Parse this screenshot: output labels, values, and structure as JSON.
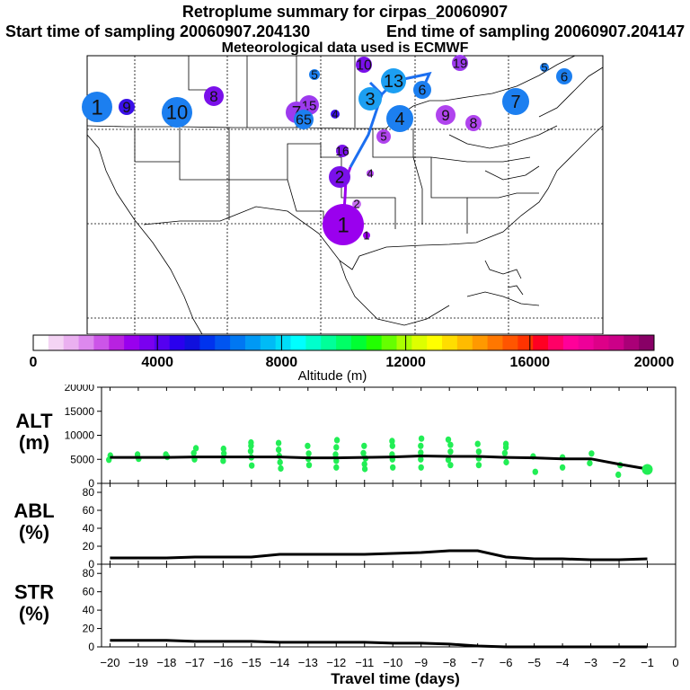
{
  "title": "Retroplume summary for cirpas_20060907",
  "start_label": "Start time of sampling 20060907.204130",
  "end_label": "End time of sampling 20060907.204147",
  "met_label": "Meteorological data used is ECMWF",
  "colorbar": {
    "label": "Altitude (m)",
    "ticks": [
      "0",
      "4000",
      "8000",
      "12000",
      "16000",
      "20000"
    ],
    "colors": [
      "#ffffff",
      "#f4d4f4",
      "#eab0f0",
      "#dd88ee",
      "#cc55e8",
      "#b822e0",
      "#9900ee",
      "#7a00f0",
      "#5500f0",
      "#2a00ee",
      "#1010dd",
      "#0033ee",
      "#0055f0",
      "#0077f2",
      "#0099f4",
      "#00bbf6",
      "#00ddf8",
      "#00ffff",
      "#00ffcc",
      "#00ff99",
      "#00ff66",
      "#00ff33",
      "#22ff00",
      "#66ff00",
      "#aaff00",
      "#ddff00",
      "#ffff00",
      "#ffdd00",
      "#ffbb00",
      "#ff9900",
      "#ff7700",
      "#ff5500",
      "#ff3300",
      "#ff0022",
      "#ff0066",
      "#ff0099",
      "#ee0099",
      "#dd0088",
      "#cc0088",
      "#aa0077",
      "#880066"
    ]
  },
  "map_labels": [
    {
      "text": "1",
      "color": "#1c7ff0"
    },
    {
      "text": "9",
      "color": "#3a10e8"
    },
    {
      "text": "10",
      "color": "#1c7ff0"
    },
    {
      "text": "8",
      "color": "#7a10ea"
    },
    {
      "text": "5",
      "color": "#1c7ff0"
    },
    {
      "text": "15",
      "color": "#9d3aee"
    },
    {
      "text": "7",
      "color": "#9d3aee"
    },
    {
      "text": "65",
      "color": "#1c7ff0"
    },
    {
      "text": "4",
      "color": "#3a10e8"
    },
    {
      "text": "16",
      "color": "#7a10ea"
    },
    {
      "text": "3",
      "color": "#1c9ff2"
    },
    {
      "text": "4",
      "color": "#1c7ff0"
    },
    {
      "text": "5",
      "color": "#b044ee"
    },
    {
      "text": "2",
      "color": "#7a10ea"
    },
    {
      "text": "4",
      "color": "#b044ee"
    },
    {
      "text": "2",
      "color": "#c66ef0"
    },
    {
      "text": "1",
      "color": "#9a00ee"
    },
    {
      "text": "1",
      "color": "#9a00ee"
    },
    {
      "text": "9",
      "color": "#b044ee"
    },
    {
      "text": "8",
      "color": "#b044ee"
    },
    {
      "text": "7",
      "color": "#1c7ff0"
    },
    {
      "text": "5",
      "color": "#1c7ff0"
    },
    {
      "text": "6",
      "color": "#1c7ff0"
    },
    {
      "text": "19",
      "color": "#9d3aee"
    },
    {
      "text": "10",
      "color": "#7a10ea"
    },
    {
      "text": "13",
      "color": "#1c9ff2"
    },
    {
      "text": "6",
      "color": "#1c7ff0"
    }
  ],
  "chart_data": [
    {
      "type": "scatter",
      "title": "",
      "ylabel": "ALT (m)",
      "ylabel_line1": "ALT",
      "ylabel_line2": "(m)",
      "ylim": [
        0,
        20000
      ],
      "yticks": [
        "0",
        "5000",
        "10000",
        "15000",
        "20000"
      ],
      "x": [
        -20,
        -19,
        -18,
        -17,
        -16,
        -15,
        -14,
        -13,
        -12,
        -11,
        -10,
        -9,
        -8,
        -7,
        -6,
        -5,
        -4,
        -3,
        -2,
        -1
      ],
      "mean_altitude": [
        5400,
        5400,
        5400,
        5500,
        5500,
        5500,
        5500,
        5300,
        5300,
        5400,
        5500,
        5700,
        5600,
        5600,
        5400,
        5300,
        5100,
        5100,
        4000,
        3000
      ],
      "scatter_points": [
        [
          -20,
          5800
        ],
        [
          -20,
          4900
        ],
        [
          -19,
          6000
        ],
        [
          -19,
          5100
        ],
        [
          -18,
          5500
        ],
        [
          -18,
          6000
        ],
        [
          -17,
          6300
        ],
        [
          -17,
          5000
        ],
        [
          -17,
          7300
        ],
        [
          -16,
          6200
        ],
        [
          -16,
          4700
        ],
        [
          -16,
          7200
        ],
        [
          -15,
          6700
        ],
        [
          -15,
          5400
        ],
        [
          -15,
          3700
        ],
        [
          -15,
          7800
        ],
        [
          -15,
          8500
        ],
        [
          -14,
          7000
        ],
        [
          -14,
          5700
        ],
        [
          -14,
          4400
        ],
        [
          -14,
          3100
        ],
        [
          -14,
          8400
        ],
        [
          -13,
          6200
        ],
        [
          -13,
          5100
        ],
        [
          -13,
          3800
        ],
        [
          -13,
          7800
        ],
        [
          -12,
          6000
        ],
        [
          -12,
          4700
        ],
        [
          -12,
          3300
        ],
        [
          -12,
          7500
        ],
        [
          -12,
          9000
        ],
        [
          -11,
          6300
        ],
        [
          -11,
          5200
        ],
        [
          -11,
          4000
        ],
        [
          -11,
          3000
        ],
        [
          -11,
          7800
        ],
        [
          -10,
          6000
        ],
        [
          -10,
          5000
        ],
        [
          -10,
          3300
        ],
        [
          -10,
          7800
        ],
        [
          -10,
          8800
        ],
        [
          -9,
          6400
        ],
        [
          -9,
          5000
        ],
        [
          -9,
          3300
        ],
        [
          -9,
          7800
        ],
        [
          -9,
          9300
        ],
        [
          -8,
          6600
        ],
        [
          -8,
          4900
        ],
        [
          -8,
          3800
        ],
        [
          -8,
          8000
        ],
        [
          -8,
          9100
        ],
        [
          -7,
          6600
        ],
        [
          -7,
          5200
        ],
        [
          -7,
          3800
        ],
        [
          -7,
          8200
        ],
        [
          -6,
          6300
        ],
        [
          -6,
          4400
        ],
        [
          -6,
          7500
        ],
        [
          -6,
          8200
        ],
        [
          -5,
          5600
        ],
        [
          -5,
          2400
        ],
        [
          -4,
          5400
        ],
        [
          -4,
          3300
        ],
        [
          -3,
          6200
        ],
        [
          -3,
          4200
        ],
        [
          -2,
          3800
        ],
        [
          -2,
          1800
        ],
        [
          -1,
          3000
        ],
        [
          -1,
          2800
        ]
      ]
    },
    {
      "type": "line",
      "ylabel": "ABL (%)",
      "ylabel_line1": "ABL",
      "ylabel_line2": "(%)",
      "ylim": [
        0,
        90
      ],
      "yticks": [
        "0",
        "20",
        "40",
        "60",
        "80"
      ],
      "x": [
        -20,
        -19,
        -18,
        -17,
        -16,
        -15,
        -14,
        -13,
        -12,
        -11,
        -10,
        -9,
        -8,
        -7,
        -6,
        -5,
        -4,
        -3,
        -2,
        -1
      ],
      "values": [
        7,
        7,
        7,
        8,
        8,
        8,
        11,
        11,
        11,
        11,
        12,
        13,
        15,
        15,
        8,
        6,
        6,
        5,
        5,
        6
      ]
    },
    {
      "type": "line",
      "ylabel": "STR (%)",
      "ylabel_line1": "STR",
      "ylabel_line2": "(%)",
      "ylim": [
        0,
        90
      ],
      "yticks": [
        "0",
        "20",
        "40",
        "60",
        "80"
      ],
      "xlabel": "Travel time (days)",
      "xticks": [
        "−20",
        "−19",
        "−18",
        "−17",
        "−16",
        "−15",
        "−14",
        "−13",
        "−12",
        "−11",
        "−10",
        "−9",
        "−8",
        "−7",
        "−6",
        "−5",
        "−4",
        "−3",
        "−2",
        "−1",
        "0"
      ],
      "x": [
        -20,
        -19,
        -18,
        -17,
        -16,
        -15,
        -14,
        -13,
        -12,
        -11,
        -10,
        -9,
        -8,
        -7,
        -6,
        -5,
        -4,
        -3,
        -2,
        -1
      ],
      "values": [
        7,
        7,
        7,
        6,
        6,
        6,
        5,
        5,
        5,
        5,
        4,
        4,
        3,
        1,
        0,
        0,
        0,
        0,
        0,
        0
      ]
    }
  ]
}
